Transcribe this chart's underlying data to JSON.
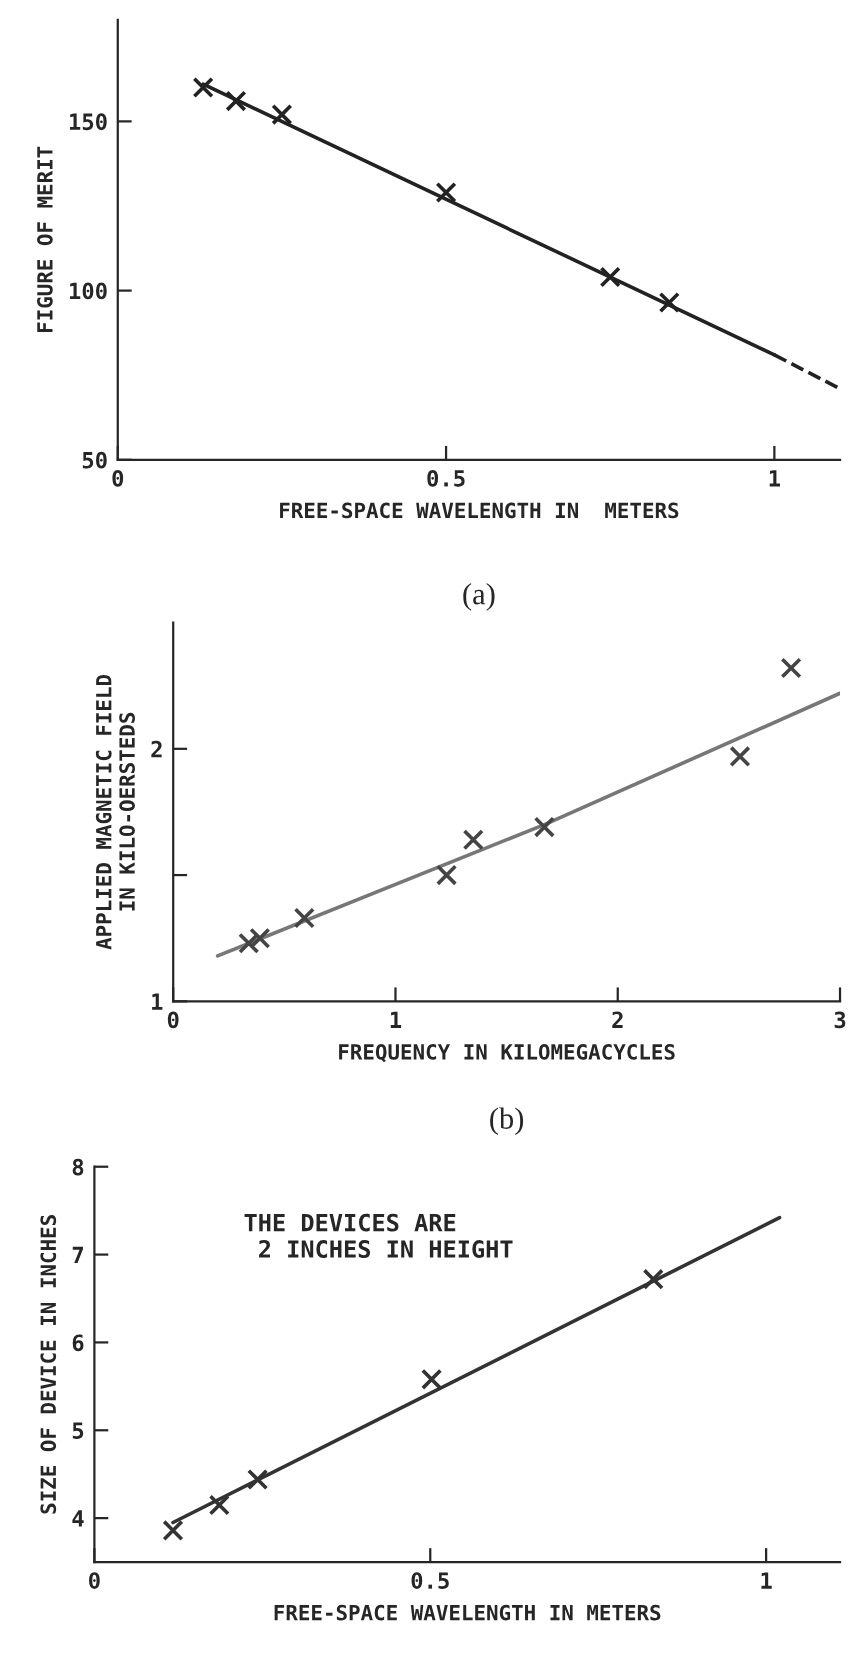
{
  "chart_data": [
    {
      "type": "line",
      "xlabel": "FREE-SPACE WAVELENGTH IN  METERS",
      "ylabel": "FIGURE OF MERIT",
      "xlim": [
        0,
        1.1
      ],
      "ylim": [
        50,
        180
      ],
      "xticks": [
        0,
        0.5,
        1
      ],
      "yticks": [
        50,
        100,
        150
      ],
      "grid": false,
      "annotations": [
        "(a)"
      ],
      "series": [
        {
          "type": "scatter",
          "color": "#222222",
          "marker": "cross",
          "x": [
            0.13,
            0.18,
            0.25,
            0.5,
            0.75,
            0.84
          ],
          "values": [
            160,
            156,
            152,
            129,
            104,
            96.5
          ]
        },
        {
          "type": "line",
          "color": "#222222",
          "line_style": "solid",
          "x": [
            0.13,
            1.0
          ],
          "values": [
            161,
            81
          ]
        },
        {
          "type": "line",
          "color": "#222222",
          "line_style": "dashed",
          "x": [
            1.0,
            1.1
          ],
          "values": [
            81,
            71
          ]
        }
      ]
    },
    {
      "type": "line",
      "xlabel": "FREQUENCY IN KILOMEGACYCLES",
      "ylabel": "APPLIED MAGNETIC FIELD\nIN KILO-OERSTEDS",
      "xlim": [
        0,
        3
      ],
      "ylim": [
        1,
        2.5
      ],
      "xticks": [
        0,
        1,
        2,
        3
      ],
      "yticks": [
        1,
        {
          "value": 1.5,
          "label": null
        },
        2
      ],
      "grid": false,
      "annotations": [
        "(b)"
      ],
      "series": [
        {
          "type": "scatter",
          "color": "#444444",
          "marker": "cross",
          "x": [
            0.34,
            0.39,
            0.59,
            1.23,
            1.35,
            1.67,
            2.55,
            2.78
          ],
          "values": [
            1.23,
            1.25,
            1.33,
            1.5,
            1.64,
            1.69,
            1.97,
            2.32
          ]
        },
        {
          "type": "line",
          "color": "#777777",
          "line_style": "solid",
          "x": [
            0.2,
            1.67,
            3.0
          ],
          "values": [
            1.18,
            1.7,
            2.22
          ]
        }
      ]
    },
    {
      "type": "line",
      "xlabel": "FREE-SPACE WAVELENGTH IN METERS",
      "ylabel": "SIZE OF DEVICE IN INCHES",
      "xlim": [
        0,
        1.11
      ],
      "ylim": [
        3.5,
        8
      ],
      "xticks": [
        0,
        0.5,
        1
      ],
      "yticks": [
        4,
        5,
        6,
        7,
        8
      ],
      "grid": false,
      "annotations": [
        "THE DEVICES ARE\n 2 INCHES IN HEIGHT"
      ],
      "series": [
        {
          "type": "scatter",
          "color": "#333333",
          "marker": "cross",
          "x": [
            0.117,
            0.186,
            0.243,
            0.502,
            0.832
          ],
          "values": [
            3.86,
            4.15,
            4.44,
            5.58,
            6.72
          ]
        },
        {
          "type": "line",
          "color": "#333333",
          "line_style": "solid",
          "x": [
            0.117,
            1.02
          ],
          "values": [
            3.95,
            7.42
          ]
        }
      ]
    }
  ]
}
